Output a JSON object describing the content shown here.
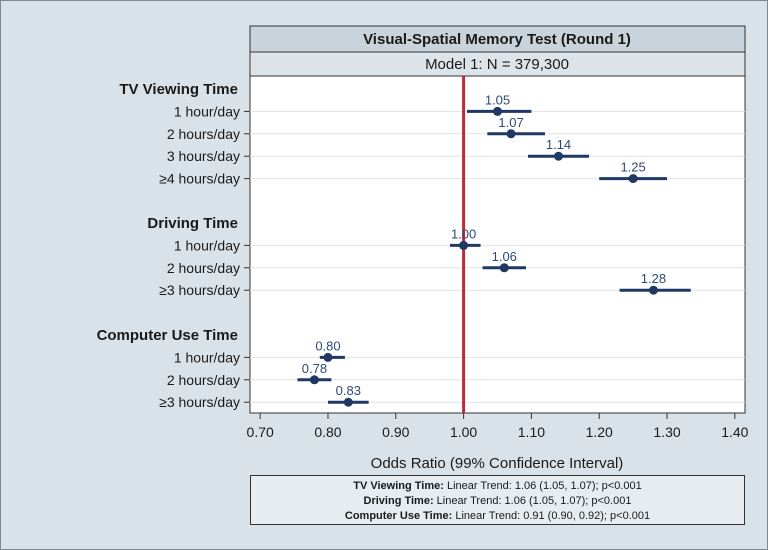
{
  "chart_data": {
    "type": "forest",
    "title": "Visual-Spatial Memory Test (Round 1)",
    "subtitle": "Model 1: N = 379,300",
    "xlabel": "Odds Ratio (99% Confidence Interval)",
    "xlim": [
      0.685,
      1.415
    ],
    "xticks": [
      "0.70",
      "0.80",
      "0.90",
      "1.00",
      "1.10",
      "1.20",
      "1.30",
      "1.40"
    ],
    "reference_line": 1.0,
    "groups": [
      {
        "name": "TV Viewing Time",
        "rows": [
          {
            "label": "1 hour/day",
            "or": 1.05,
            "or_label": "1.05",
            "lo": 1.005,
            "hi": 1.1
          },
          {
            "label": "2 hours/day",
            "or": 1.07,
            "or_label": "1.07",
            "lo": 1.035,
            "hi": 1.12
          },
          {
            "label": "3 hours/day",
            "or": 1.14,
            "or_label": "1.14",
            "lo": 1.095,
            "hi": 1.185
          },
          {
            "label": "≥4 hours/day",
            "or": 1.25,
            "or_label": "1.25",
            "lo": 1.2,
            "hi": 1.3
          }
        ]
      },
      {
        "name": "Driving Time",
        "rows": [
          {
            "label": "1 hour/day",
            "or": 1.0,
            "or_label": "1.00",
            "lo": 0.98,
            "hi": 1.025
          },
          {
            "label": "2 hours/day",
            "or": 1.06,
            "or_label": "1.06",
            "lo": 1.028,
            "hi": 1.092
          },
          {
            "label": "≥3 hours/day",
            "or": 1.28,
            "or_label": "1.28",
            "lo": 1.23,
            "hi": 1.335
          }
        ]
      },
      {
        "name": "Computer Use Time",
        "rows": [
          {
            "label": "1 hour/day",
            "or": 0.8,
            "or_label": "0.80",
            "lo": 0.788,
            "hi": 0.825
          },
          {
            "label": "2 hours/day",
            "or": 0.78,
            "or_label": "0.78",
            "lo": 0.755,
            "hi": 0.805
          },
          {
            "label": "≥3 hours/day",
            "or": 0.83,
            "or_label": "0.83",
            "lo": 0.8,
            "hi": 0.86
          }
        ]
      }
    ],
    "colors": {
      "point": "#1f3864",
      "ci_line": "#1f3864",
      "reference_line": "#c0283b",
      "value_label": "#2f4a74",
      "header_fill": "#c8d3db"
    }
  },
  "footnote": {
    "lines": [
      {
        "bold": "TV Viewing Time:",
        "text": " Linear Trend: 1.06 (1.05, 1.07); p<0.001"
      },
      {
        "bold": "Driving Time:",
        "text": " Linear Trend: 1.06 (1.05, 1.07); p<0.001"
      },
      {
        "bold": "Computer Use Time:",
        "text": " Linear Trend: 0.91 (0.90, 0.92); p<0.001"
      }
    ]
  }
}
